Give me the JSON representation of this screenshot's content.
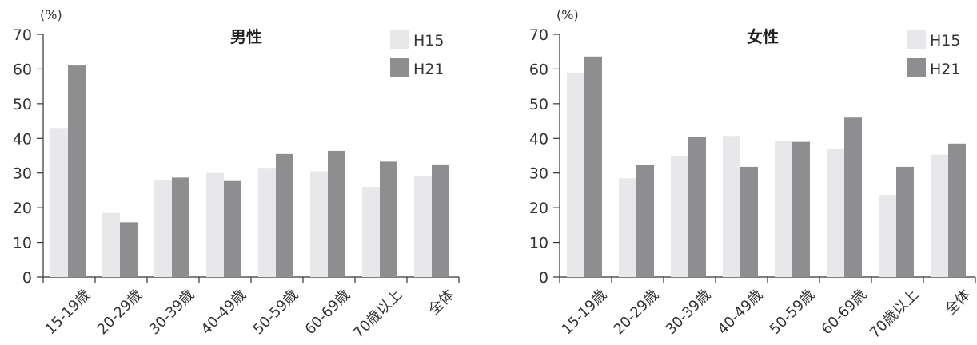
{
  "chart_data": [
    {
      "type": "bar",
      "title": "男性",
      "unit": "(%)",
      "xlabel": "",
      "ylabel": "",
      "ylim": [
        0,
        70
      ],
      "yticks": [
        0,
        10,
        20,
        30,
        40,
        50,
        60,
        70
      ],
      "grid": false,
      "legend": "top-right",
      "categories": [
        "15-19歳",
        "20-29歳",
        "30-39歳",
        "40-49歳",
        "50-59歳",
        "60-69歳",
        "70歳以上",
        "全体"
      ],
      "series": [
        {
          "name": "H15",
          "color": "#e8e8ea",
          "values": [
            43,
            18.5,
            28,
            30,
            31.5,
            30.5,
            26,
            29
          ]
        },
        {
          "name": "H21",
          "color": "#8e8e90",
          "values": [
            61,
            15.8,
            28.7,
            27.7,
            35.5,
            36.4,
            33.3,
            32.5
          ]
        }
      ]
    },
    {
      "type": "bar",
      "title": "女性",
      "unit": "(%)",
      "xlabel": "",
      "ylabel": "",
      "ylim": [
        0,
        70
      ],
      "yticks": [
        0,
        10,
        20,
        30,
        40,
        50,
        60,
        70
      ],
      "grid": false,
      "legend": "top-right",
      "categories": [
        "15-19歳",
        "20-29歳",
        "30-39歳",
        "40-49歳",
        "50-59歳",
        "60-69歳",
        "70歳以上",
        "全体"
      ],
      "series": [
        {
          "name": "H15",
          "color": "#e8e8ea",
          "values": [
            59,
            28.5,
            35,
            40.7,
            39.2,
            37,
            23.7,
            35.3
          ]
        },
        {
          "name": "H21",
          "color": "#8e8e90",
          "values": [
            63.6,
            32.4,
            40.3,
            31.8,
            39,
            46,
            31.8,
            38.5
          ]
        }
      ]
    }
  ]
}
